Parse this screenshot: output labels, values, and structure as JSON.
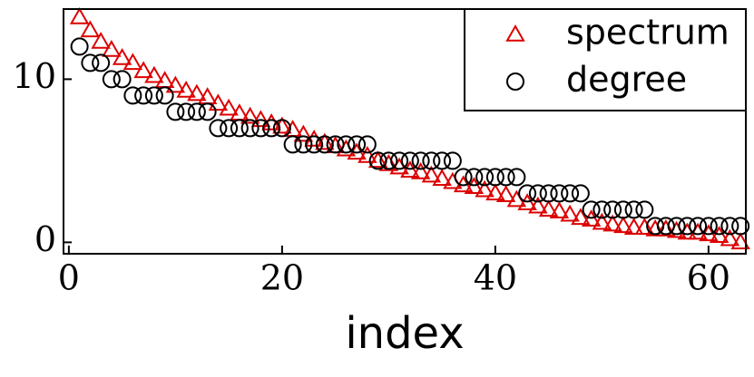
{
  "chart_data": {
    "type": "scatter",
    "xlabel": "index",
    "x": [
      1,
      2,
      3,
      4,
      5,
      6,
      7,
      8,
      9,
      10,
      11,
      12,
      13,
      14,
      15,
      16,
      17,
      18,
      19,
      20,
      21,
      22,
      23,
      24,
      25,
      26,
      27,
      28,
      29,
      30,
      31,
      32,
      33,
      34,
      35,
      36,
      37,
      38,
      39,
      40,
      41,
      42,
      43,
      44,
      45,
      46,
      47,
      48,
      49,
      50,
      51,
      52,
      53,
      54,
      55,
      56,
      57,
      58,
      59,
      60,
      61,
      62,
      63
    ],
    "series": [
      {
        "name": "spectrum",
        "color": "#dd0000",
        "marker": "triangle",
        "values": [
          13.8,
          13.0,
          12.3,
          11.8,
          11.3,
          11.0,
          10.5,
          10.2,
          9.9,
          9.6,
          9.3,
          9.1,
          8.9,
          8.5,
          8.2,
          7.9,
          7.7,
          7.5,
          7.3,
          7.1,
          6.9,
          6.6,
          6.3,
          6.1,
          5.9,
          5.7,
          5.5,
          5.3,
          5.0,
          4.8,
          4.6,
          4.4,
          4.3,
          4.1,
          3.9,
          3.7,
          3.5,
          3.4,
          3.2,
          3.0,
          2.9,
          2.6,
          2.4,
          2.2,
          2.0,
          1.9,
          1.7,
          1.5,
          1.4,
          1.2,
          1.1,
          1.0,
          0.9,
          0.9,
          0.8,
          0.8,
          0.7,
          0.6,
          0.6,
          0.5,
          0.4,
          0.2,
          0.0
        ]
      },
      {
        "name": "degree",
        "color": "#000000",
        "marker": "circle",
        "values": [
          12,
          11,
          11,
          10,
          10,
          9,
          9,
          9,
          9,
          8,
          8,
          8,
          8,
          7,
          7,
          7,
          7,
          7,
          7,
          7,
          6,
          6,
          6,
          6,
          6,
          6,
          6,
          6,
          5,
          5,
          5,
          5,
          5,
          5,
          5,
          5,
          4,
          4,
          4,
          4,
          4,
          4,
          3,
          3,
          3,
          3,
          3,
          3,
          2,
          2,
          2,
          2,
          2,
          2,
          1,
          1,
          1,
          1,
          1,
          1,
          1,
          1,
          1
        ]
      }
    ],
    "xlim": [
      -0.5,
      63.5
    ],
    "ylim": [
      -0.7,
      14.3
    ],
    "xticks": [
      0,
      20,
      40,
      60
    ],
    "yticks": [
      0,
      10
    ],
    "legend": "upper right"
  }
}
